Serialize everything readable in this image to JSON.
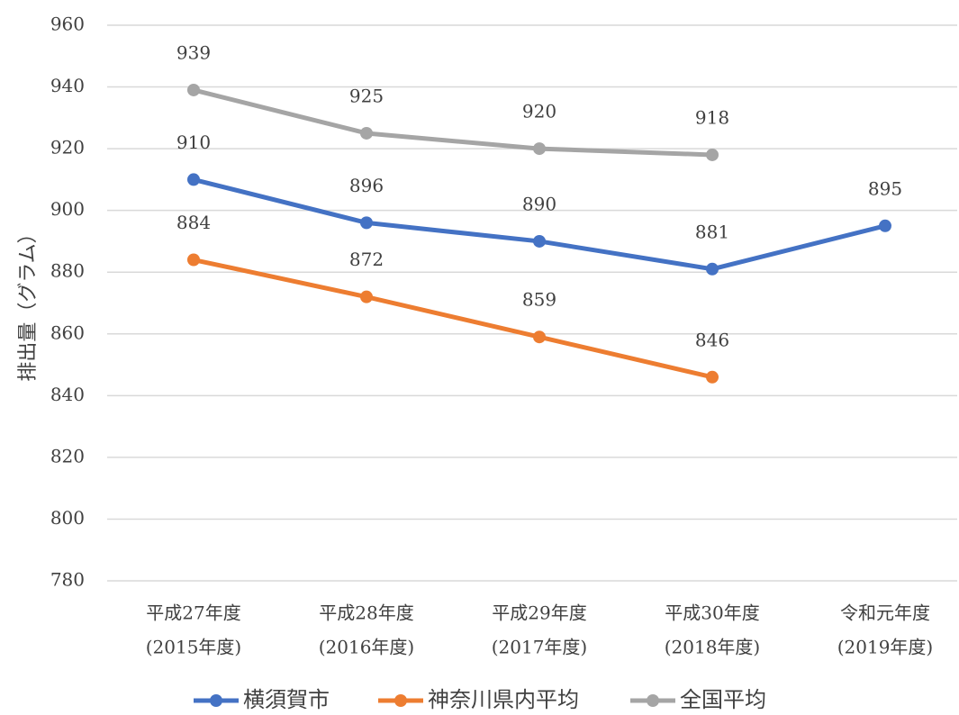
{
  "chart_data": {
    "type": "line",
    "ylabel": "排出量（グラム）",
    "categories": [
      [
        "平成27年度",
        "(2015年度)"
      ],
      [
        "平成28年度",
        "(2016年度)"
      ],
      [
        "平成29年度",
        "(2017年度)"
      ],
      [
        "平成30年度",
        "(2018年度)"
      ],
      [
        "令和元年度",
        "(2019年度)"
      ]
    ],
    "series": [
      {
        "name": "横須賀市",
        "color": "#4472c4",
        "values": [
          910,
          896,
          890,
          881,
          895
        ]
      },
      {
        "name": "神奈川県内平均",
        "color": "#ed7d31",
        "values": [
          884,
          872,
          859,
          846,
          null
        ]
      },
      {
        "name": "全国平均",
        "color": "#a5a5a5",
        "values": [
          939,
          925,
          920,
          918,
          null
        ]
      }
    ],
    "ylim": [
      780,
      960
    ],
    "yticks": [
      780,
      800,
      820,
      840,
      860,
      880,
      900,
      920,
      940,
      960
    ],
    "grid": true,
    "legend": "bottom"
  }
}
